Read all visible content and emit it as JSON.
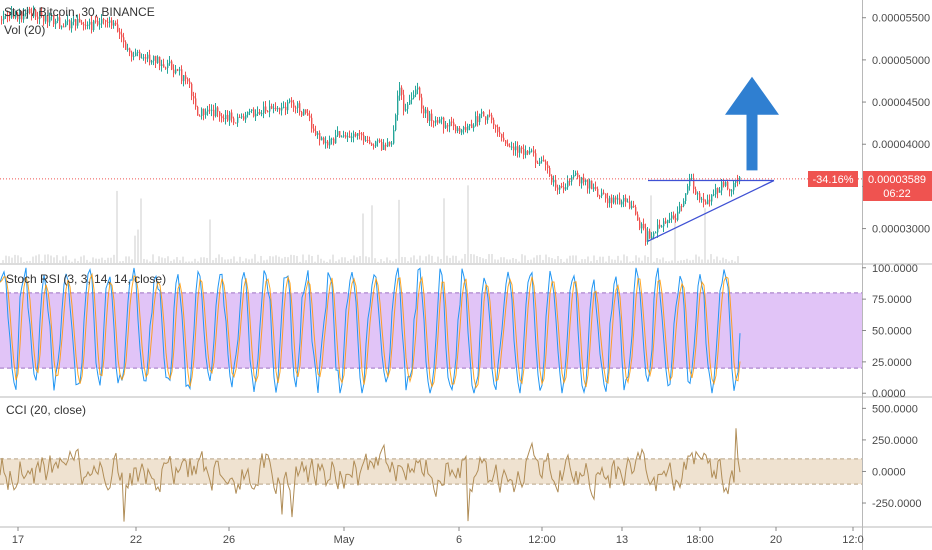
{
  "chart_data": [
    {
      "type": "candlestick",
      "title": "Storj / Bitcoin, 30, BINANCE",
      "subtitle": "Vol (20)",
      "y_ticks": [
        "0.00005500",
        "0.00005000",
        "0.00004500",
        "0.00004000",
        "0.00003500",
        "0.00003000"
      ],
      "y_tick_values": [
        5.5e-05,
        5e-05,
        4.5e-05,
        4e-05,
        3.5e-05,
        3e-05
      ],
      "ylim": [
        2.58e-05,
        5.71e-05
      ],
      "current_price": "0.00003589",
      "current_price_value": 3.589e-05,
      "change_label": "-34.16%",
      "countdown": "06:22",
      "price_path": [
        [
          0,
          5.48e-05
        ],
        [
          10,
          5.56e-05
        ],
        [
          20,
          5.52e-05
        ],
        [
          30,
          5.57e-05
        ],
        [
          42,
          5.5e-05
        ],
        [
          55,
          5.46e-05
        ],
        [
          65,
          5.41e-05
        ],
        [
          75,
          5.46e-05
        ],
        [
          88,
          5.4e-05
        ],
        [
          100,
          5.43e-05
        ],
        [
          112,
          5.42e-05
        ],
        [
          120,
          5.3e-05
        ],
        [
          128,
          5.08e-05
        ],
        [
          140,
          5.04e-05
        ],
        [
          152,
          5e-05
        ],
        [
          165,
          4.96e-05
        ],
        [
          178,
          4.85e-05
        ],
        [
          188,
          4.7e-05
        ],
        [
          196,
          4.4e-05
        ],
        [
          205,
          4.36e-05
        ],
        [
          215,
          4.38e-05
        ],
        [
          225,
          4.34e-05
        ],
        [
          235,
          4.3e-05
        ],
        [
          245,
          4.33e-05
        ],
        [
          255,
          4.38e-05
        ],
        [
          265,
          4.4e-05
        ],
        [
          275,
          4.42e-05
        ],
        [
          285,
          4.45e-05
        ],
        [
          292,
          4.5e-05
        ],
        [
          300,
          4.4e-05
        ],
        [
          310,
          4.25e-05
        ],
        [
          320,
          4.05e-05
        ],
        [
          330,
          4.03e-05
        ],
        [
          340,
          4.14e-05
        ],
        [
          350,
          4.09e-05
        ],
        [
          362,
          4.1e-05
        ],
        [
          372,
          4.02e-05
        ],
        [
          384,
          3.98e-05
        ],
        [
          392,
          4.08e-05
        ],
        [
          398,
          4.7e-05
        ],
        [
          404,
          4.4e-05
        ],
        [
          410,
          4.55e-05
        ],
        [
          416,
          4.72e-05
        ],
        [
          422,
          4.38e-05
        ],
        [
          430,
          4.3e-05
        ],
        [
          440,
          4.27e-05
        ],
        [
          452,
          4.2e-05
        ],
        [
          464,
          4.17e-05
        ],
        [
          474,
          4.28e-05
        ],
        [
          482,
          4.35e-05
        ],
        [
          490,
          4.28e-05
        ],
        [
          500,
          4.1e-05
        ],
        [
          510,
          3.98e-05
        ],
        [
          520,
          3.9e-05
        ],
        [
          530,
          3.88e-05
        ],
        [
          540,
          3.8e-05
        ],
        [
          550,
          3.6e-05
        ],
        [
          558,
          3.45e-05
        ],
        [
          566,
          3.5e-05
        ],
        [
          572,
          3.64e-05
        ],
        [
          580,
          3.56e-05
        ],
        [
          590,
          3.52e-05
        ],
        [
          600,
          3.4e-05
        ],
        [
          610,
          3.32e-05
        ],
        [
          620,
          3.34e-05
        ],
        [
          630,
          3.3e-05
        ],
        [
          638,
          3.08e-05
        ],
        [
          645,
          2.9e-05
        ],
        [
          652,
          2.96e-05
        ],
        [
          660,
          3.02e-05
        ],
        [
          668,
          3.08e-05
        ],
        [
          675,
          3.16e-05
        ],
        [
          682,
          3.32e-05
        ],
        [
          690,
          3.57e-05
        ],
        [
          696,
          3.4e-05
        ],
        [
          703,
          3.27e-05
        ],
        [
          710,
          3.36e-05
        ],
        [
          716,
          3.44e-05
        ],
        [
          722,
          3.53e-05
        ],
        [
          728,
          3.48e-05
        ],
        [
          734,
          3.54e-05
        ],
        [
          740,
          3.58e-05
        ]
      ],
      "triangle": {
        "top_line": [
          [
            648,
            3.57e-05
          ],
          [
            774,
            3.57e-05
          ]
        ],
        "bottom_line": [
          [
            648,
            2.85e-05
          ],
          [
            774,
            3.57e-05
          ]
        ]
      },
      "arrow": {
        "x": 752,
        "y_start": 3.69e-05,
        "y_end": 4.8e-05,
        "color": "#2f7fd1"
      },
      "colors": {
        "up": "#26a69a",
        "down": "#ef5350",
        "price_line": "#ef5350",
        "triangle": "#3f51d4"
      }
    },
    {
      "type": "line",
      "title": "Stoch RSI (3, 3, 14, 14, close)",
      "y_ticks": [
        "100.0000",
        "75.0000",
        "50.0000",
        "25.0000",
        "0.0000"
      ],
      "y_tick_values": [
        100,
        75,
        50,
        25,
        0
      ],
      "ylim": [
        -3,
        103
      ],
      "band": [
        20,
        80
      ],
      "colors": {
        "k": "#2196f3",
        "d": "#ff9800",
        "band": "#e1c4f7"
      }
    },
    {
      "type": "line",
      "title": "CCI (20, close)",
      "y_ticks": [
        "500.0000",
        "250.0000",
        "0.0000",
        "-250.0000"
      ],
      "y_tick_values": [
        500,
        250,
        0,
        -250
      ],
      "ylim": [
        -440,
        590
      ],
      "band": [
        -100,
        100
      ],
      "colors": {
        "line": "#b08d57",
        "band": "#efe2d0"
      }
    }
  ],
  "x_axis": {
    "ticks": [
      {
        "label": "17",
        "x": 18
      },
      {
        "label": "22",
        "x": 136
      },
      {
        "label": "26",
        "x": 229
      },
      {
        "label": "May",
        "x": 344
      },
      {
        "label": "6",
        "x": 459
      },
      {
        "label": "12:00",
        "x": 542
      },
      {
        "label": "13",
        "x": 622
      },
      {
        "label": "18:00",
        "x": 700
      },
      {
        "label": "20",
        "x": 776
      },
      {
        "label": "12:0",
        "x": 853
      }
    ]
  }
}
